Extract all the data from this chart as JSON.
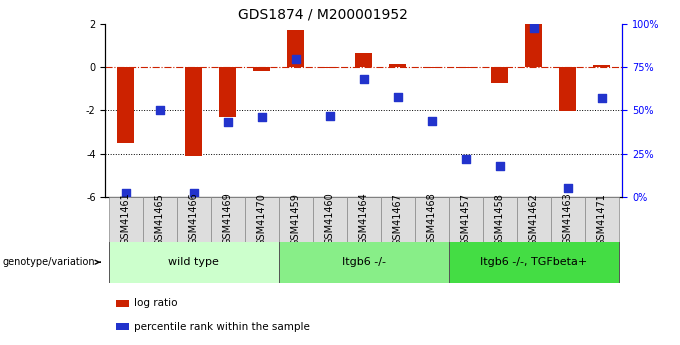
{
  "title": "GDS1874 / M200001952",
  "samples": [
    "GSM41461",
    "GSM41465",
    "GSM41466",
    "GSM41469",
    "GSM41470",
    "GSM41459",
    "GSM41460",
    "GSM41464",
    "GSM41467",
    "GSM41468",
    "GSM41457",
    "GSM41458",
    "GSM41462",
    "GSM41463",
    "GSM41471"
  ],
  "log_ratio": [
    -3.5,
    0.0,
    -4.1,
    -2.3,
    -0.15,
    1.75,
    -0.05,
    0.65,
    0.15,
    -0.05,
    -0.05,
    -0.75,
    2.0,
    -2.05,
    0.1
  ],
  "percentile_rank": [
    2,
    50,
    2,
    43,
    46,
    80,
    47,
    68,
    58,
    44,
    22,
    18,
    98,
    5,
    57
  ],
  "groups": [
    {
      "label": "wild type",
      "start": 0,
      "end": 5,
      "color": "#ccffcc"
    },
    {
      "label": "Itgb6 -/-",
      "start": 5,
      "end": 10,
      "color": "#88ee88"
    },
    {
      "label": "Itgb6 -/-, TGFbeta+",
      "start": 10,
      "end": 15,
      "color": "#44dd44"
    }
  ],
  "ylim_left": [
    -6,
    2
  ],
  "ylim_right": [
    0,
    100
  ],
  "yticks_left": [
    -6,
    -4,
    -2,
    0,
    2
  ],
  "yticks_right": [
    0,
    25,
    50,
    75,
    100
  ],
  "ytick_labels_right": [
    "0%",
    "25%",
    "50%",
    "75%",
    "100%"
  ],
  "hlines": [
    -2,
    -4
  ],
  "bar_color": "#cc2200",
  "dot_color": "#2233cc",
  "dashed_color": "#cc2200",
  "bar_width": 0.5,
  "dot_size": 35,
  "legend_bar_label": "log ratio",
  "legend_dot_label": "percentile rank within the sample",
  "genotype_label": "genotype/variation",
  "bg_color": "#ffffff",
  "title_fontsize": 10,
  "tick_fontsize": 7,
  "label_fontsize": 8
}
